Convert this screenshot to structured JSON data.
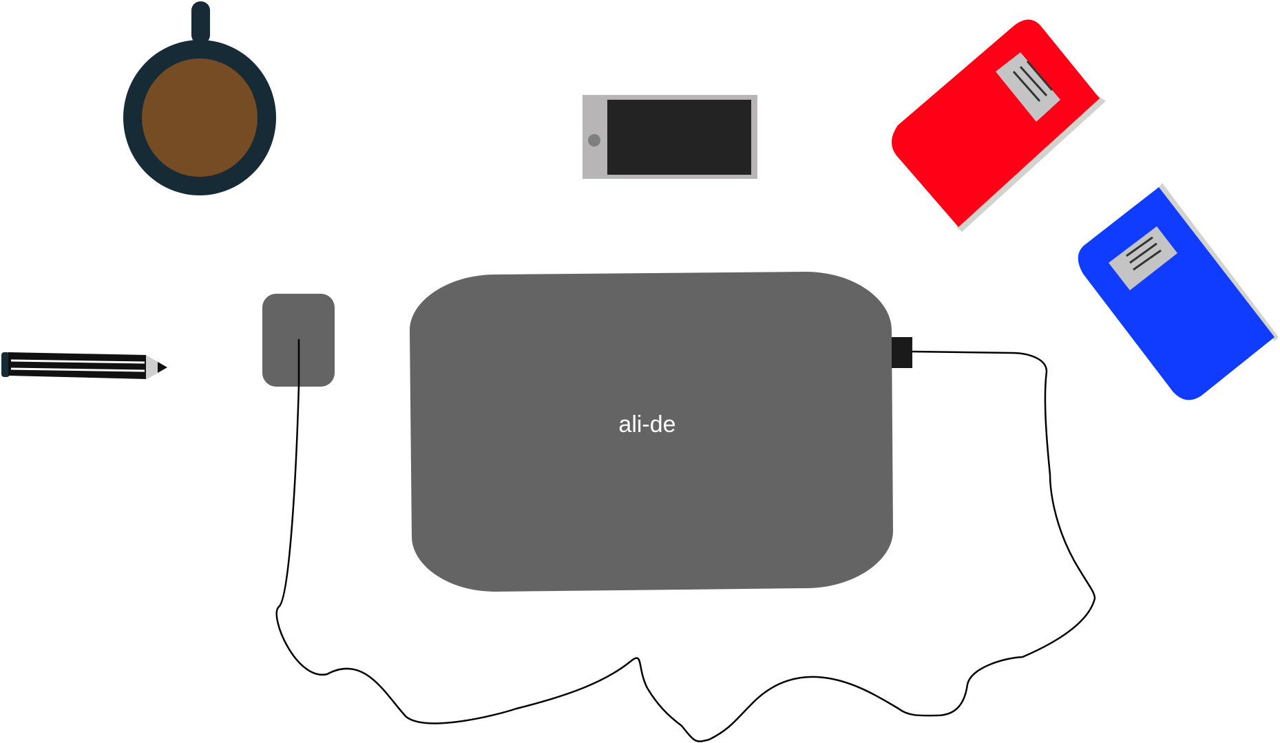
{
  "laptop": {
    "label": "ali-de",
    "body_color": "#646464",
    "plug_color": "#1a1a1a"
  },
  "colors": {
    "background": "#ffffff",
    "cup_rim": "#172b36",
    "coffee": "#754c24",
    "phone_frame": "#b7b5b5",
    "phone_screen": "#232323",
    "phone_button": "#7f7f7f",
    "red_book": "#ff0016",
    "blue_book": "#103cff",
    "book_pages": "#d3d3ce",
    "book_label": "#c4c4c4",
    "label_lines": "#333333",
    "pencil_body": "#111111",
    "pencil_stripe": "#ffffff",
    "pencil_tip": "#cfcfcf",
    "mouse": "#646464",
    "cable": "#000000"
  },
  "icons": {
    "cup": "coffee-cup-icon",
    "phone": "smartphone-icon",
    "red_notebook": "red-notebook-icon",
    "blue_notebook": "blue-notebook-icon",
    "pencil": "pencil-icon",
    "mouse": "mouse-icon",
    "laptop": "laptop-icon"
  }
}
